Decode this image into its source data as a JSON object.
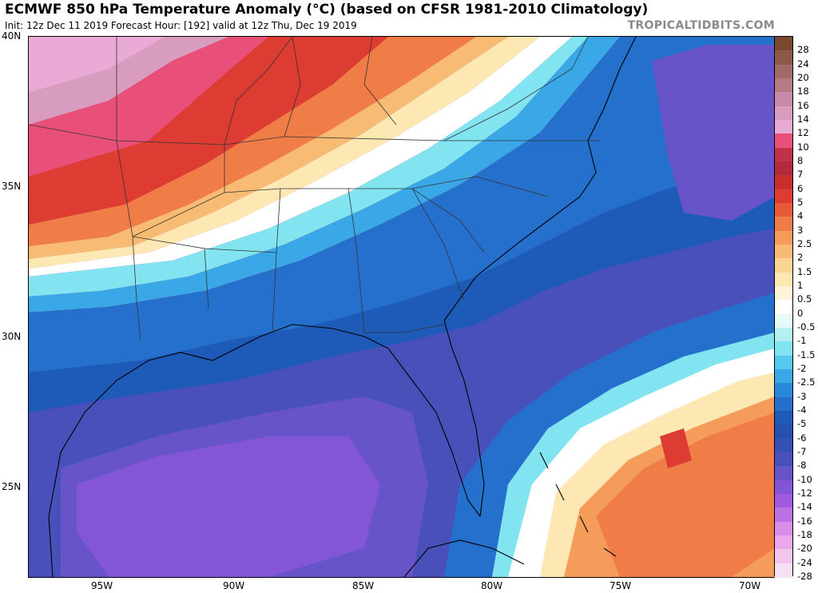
{
  "header": {
    "title": "ECMWF 850 hPa Temperature Anomaly (°C) (based on CFSR 1981-2010 Climatology)",
    "subtitle": "Init: 12z Dec 11 2019   Forecast Hour: [192]   valid at 12z Thu, Dec 19 2019",
    "brand": "TROPICALTIDBITS.COM"
  },
  "axes": {
    "lat_labels": [
      "40N",
      "35N",
      "30N",
      "25N"
    ],
    "lon_labels": [
      "95W",
      "90W",
      "85W",
      "80W",
      "75W",
      "70W"
    ]
  },
  "colorbar": {
    "levels": [
      {
        "label": "28",
        "color": "#7a4a2e"
      },
      {
        "label": "24",
        "color": "#8c5a48"
      },
      {
        "label": "20",
        "color": "#a06a66"
      },
      {
        "label": "18",
        "color": "#b47a86"
      },
      {
        "label": "16",
        "color": "#c88aa6"
      },
      {
        "label": "14",
        "color": "#d89cbe"
      },
      {
        "label": "12",
        "color": "#eaaad6"
      },
      {
        "label": "10",
        "color": "#e8507a"
      },
      {
        "label": "8",
        "color": "#c0314a"
      },
      {
        "label": "7",
        "color": "#b22a3c"
      },
      {
        "label": "6",
        "color": "#c82e2e"
      },
      {
        "label": "5",
        "color": "#dc3c32"
      },
      {
        "label": "4",
        "color": "#e8593a"
      },
      {
        "label": "3",
        "color": "#f07c48"
      },
      {
        "label": "2.5",
        "color": "#f59c5a"
      },
      {
        "label": "2",
        "color": "#f8bb74"
      },
      {
        "label": "1.5",
        "color": "#fbd594"
      },
      {
        "label": "1",
        "color": "#fde8b4"
      },
      {
        "label": "0.5",
        "color": "#fff4d8"
      },
      {
        "label": "0",
        "color": "#ffffff"
      },
      {
        "label": "-0.5",
        "color": "#e6fafa"
      },
      {
        "label": "-1",
        "color": "#b4f0f2"
      },
      {
        "label": "-1.5",
        "color": "#82e4f0"
      },
      {
        "label": "-2",
        "color": "#55c8ee"
      },
      {
        "label": "-2.5",
        "color": "#3aa8e6"
      },
      {
        "label": "-3",
        "color": "#2a88da"
      },
      {
        "label": "-4",
        "color": "#2470cc"
      },
      {
        "label": "-5",
        "color": "#1e5ab8"
      },
      {
        "label": "-6",
        "color": "#2450b0"
      },
      {
        "label": "-7",
        "color": "#3650b4"
      },
      {
        "label": "-8",
        "color": "#4a50ba"
      },
      {
        "label": "-10",
        "color": "#6654c8"
      },
      {
        "label": "-12",
        "color": "#8256d6"
      },
      {
        "label": "-14",
        "color": "#a05ade"
      },
      {
        "label": "-16",
        "color": "#bc72e4"
      },
      {
        "label": "-18",
        "color": "#d88ee8"
      },
      {
        "label": "-20",
        "color": "#eaa8ea"
      },
      {
        "label": "-24",
        "color": "#f2c6ee"
      },
      {
        "label": "-28",
        "color": "#f8e0f4"
      }
    ]
  }
}
